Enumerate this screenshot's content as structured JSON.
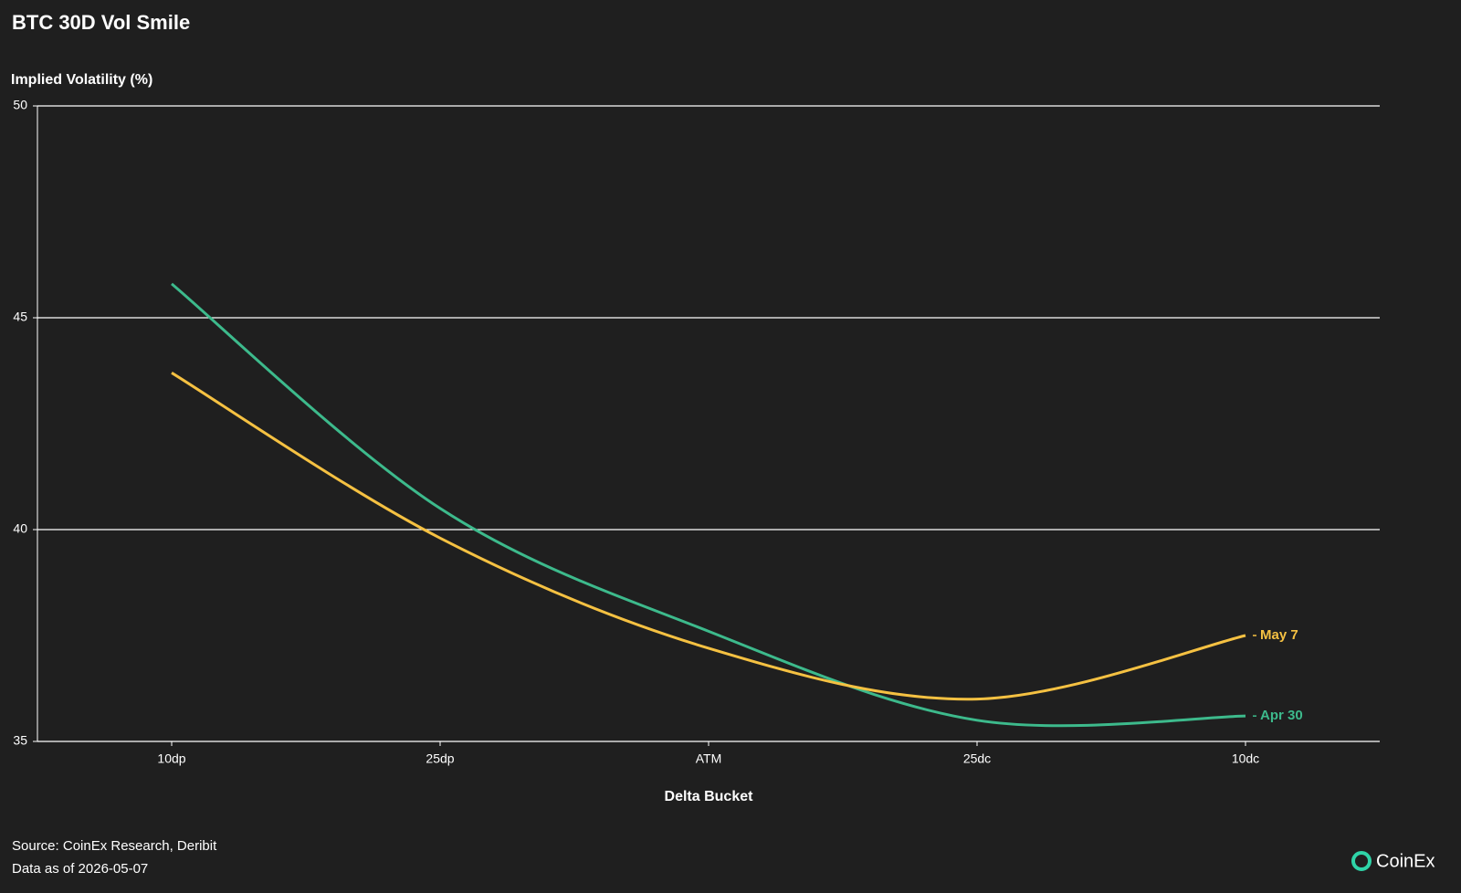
{
  "chart_data": {
    "type": "line",
    "title": "BTC 30D Vol Smile",
    "y_label": "Implied Volatility (%)",
    "x_label": "Delta Bucket",
    "categories": [
      "10dp",
      "25dp",
      "ATM",
      "25dc",
      "10dc"
    ],
    "series": [
      {
        "name": "Apr 30",
        "color": "#3dba8c",
        "values": [
          45.8,
          40.5,
          37.6,
          35.5,
          35.6
        ]
      },
      {
        "name": "May 7",
        "color": "#f5c142",
        "values": [
          43.7,
          39.8,
          37.2,
          36.0,
          37.5
        ]
      }
    ],
    "ylim": [
      35,
      50
    ],
    "yticks": [
      35,
      40,
      45,
      50
    ],
    "grid": true,
    "source": "Source: CoinEx Research, Deribit",
    "date_note": "Data as of 2026-05-07",
    "brand": "CoinEx"
  }
}
